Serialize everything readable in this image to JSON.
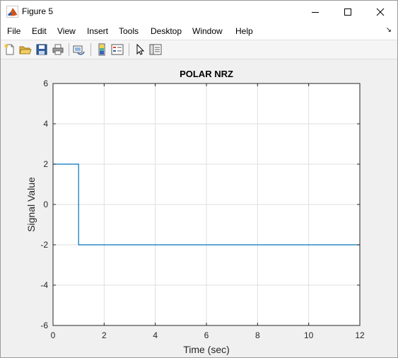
{
  "window": {
    "title": "Figure 5"
  },
  "menu": [
    "File",
    "Edit",
    "View",
    "Insert",
    "Tools",
    "Desktop",
    "Window",
    "Help"
  ],
  "toolbar": {
    "buttons": [
      "new-figure",
      "open-file",
      "save-figure",
      "print-figure",
      "link-plot",
      "insert-colorbar",
      "insert-legend",
      "edit-plot",
      "open-property-inspector"
    ]
  },
  "chart_data": {
    "type": "line",
    "title": "POLAR NRZ",
    "xlabel": "Time (sec)",
    "ylabel": "Signal Value",
    "xlim": [
      0,
      12
    ],
    "ylim": [
      -6,
      6
    ],
    "xticks": [
      0,
      2,
      4,
      6,
      8,
      10,
      12
    ],
    "yticks": [
      -6,
      -4,
      -2,
      0,
      2,
      4,
      6
    ],
    "grid": true,
    "line_color": "#0072bd",
    "series": [
      {
        "x": [
          0,
          1,
          1,
          12
        ],
        "y": [
          2,
          2,
          -2,
          -2
        ]
      }
    ]
  }
}
